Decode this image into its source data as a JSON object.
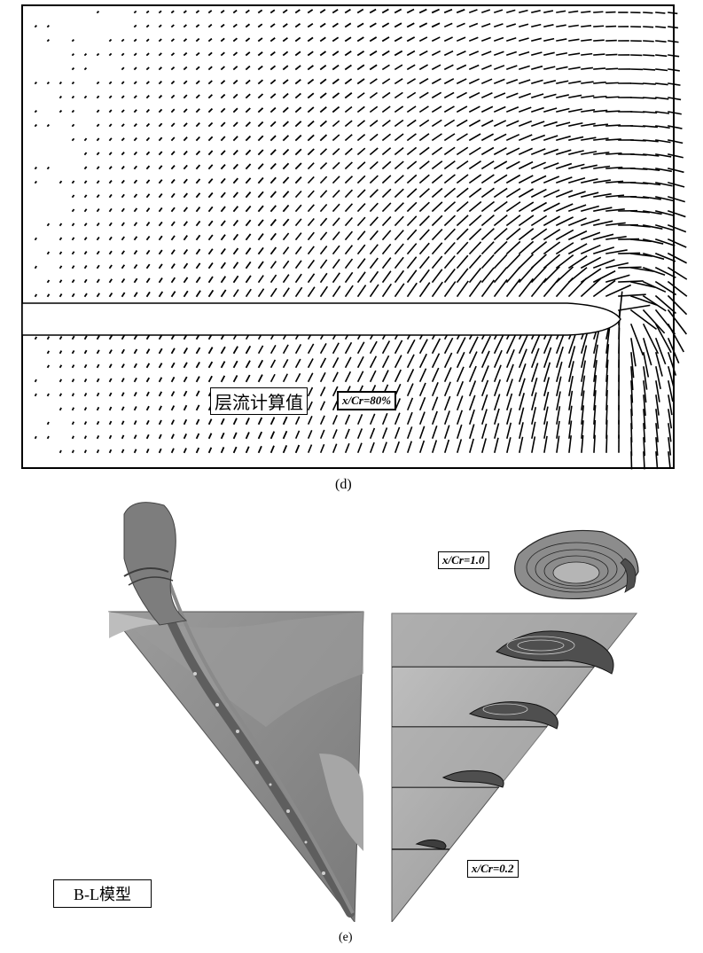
{
  "panel_d": {
    "label_laminar": "层流计算值",
    "label_station": "x/Cr=80%",
    "caption": "(d)"
  },
  "panel_e": {
    "label_model": "B-L模型",
    "label_station_top": "x/Cr=1.0",
    "label_station_bottom": "x/Cr=0.2",
    "caption": "(e)"
  },
  "colors": {
    "surface_gray": "#8a8a8a",
    "surface_dark": "#6f6f6f",
    "surface_light": "#b5b5b5",
    "ink": "#000000"
  }
}
